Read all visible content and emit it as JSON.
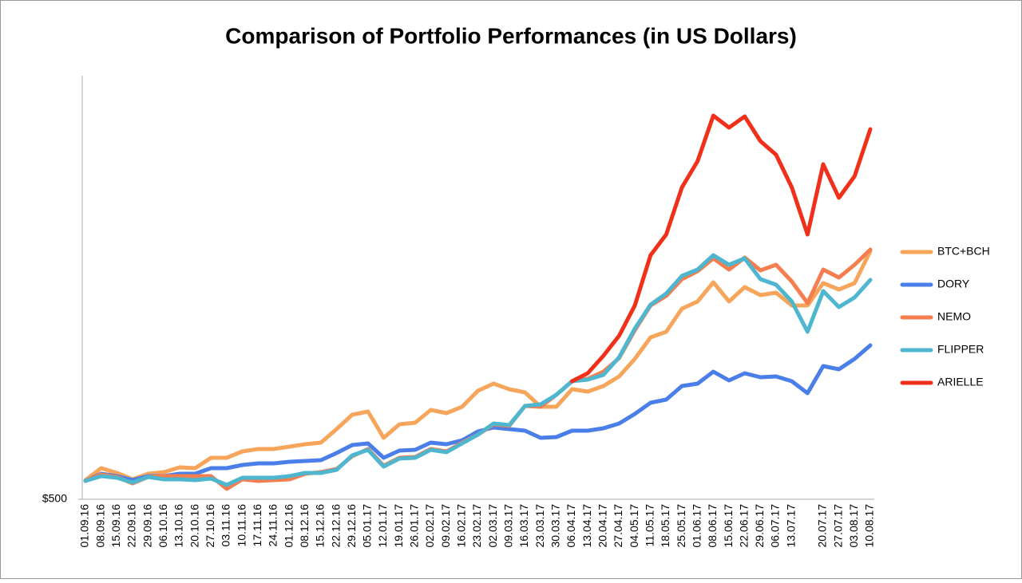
{
  "chart_data": {
    "type": "line",
    "title": "Comparison of Portfolio Performances (in US Dollars)",
    "categories": [
      "01.09.16",
      "08.09.16",
      "15.09.16",
      "22.09.16",
      "29.09.16",
      "06.10.16",
      "13.10.16",
      "20.10.16",
      "27.10.16",
      "03.11.16",
      "10.11.16",
      "17.11.16",
      "24.11.16",
      "01.12.16",
      "08.12.16",
      "15.12.16",
      "22.12.16",
      "29.12.16",
      "05.01.17",
      "12.01.17",
      "19.01.17",
      "26.01.17",
      "02.02.17",
      "09.02.17",
      "16.02.17",
      "23.02.17",
      "02.03.17",
      "09.03.17",
      "16.03.17",
      "23.03.17",
      "30.03.17",
      "06.04.17",
      "13.04.17",
      "20.04.17",
      "27.04.17",
      "04.05.17",
      "11.05.17",
      "18.05.17",
      "25.05.17",
      "01.06.17",
      "08.06.17",
      "15.06.17",
      "22.06.17",
      "29.06.17",
      "06.07.17",
      "13.07.17",
      null,
      "20.07.17",
      "27.07.17",
      "03.08.17",
      "10.08.17"
    ],
    "series": [
      {
        "name": "BTC+BCH",
        "color": "#f6a55a",
        "values": [
          620,
          695,
          665,
          625,
          660,
          670,
          700,
          695,
          760,
          760,
          800,
          815,
          815,
          830,
          845,
          855,
          940,
          1030,
          1050,
          885,
          970,
          980,
          1060,
          1040,
          1080,
          1180,
          1225,
          1190,
          1170,
          1080,
          1080,
          1190,
          1175,
          1210,
          1270,
          1380,
          1515,
          1550,
          1695,
          1740,
          1860,
          1740,
          1830,
          1780,
          1795,
          1715,
          1715,
          1855,
          1815,
          1855,
          2055
        ]
      },
      {
        "name": "DORY",
        "color": "#4a7ee8",
        "values": [
          615,
          660,
          645,
          620,
          645,
          645,
          660,
          660,
          695,
          695,
          715,
          725,
          725,
          735,
          740,
          745,
          790,
          840,
          850,
          760,
          805,
          810,
          855,
          845,
          870,
          925,
          950,
          940,
          930,
          885,
          890,
          930,
          930,
          945,
          975,
          1035,
          1105,
          1125,
          1210,
          1225,
          1300,
          1245,
          1290,
          1265,
          1270,
          1240,
          1165,
          1335,
          1315,
          1380,
          1465
        ]
      },
      {
        "name": "NEMO",
        "color": "#f47e4f",
        "values": [
          615,
          655,
          640,
          600,
          640,
          645,
          645,
          645,
          645,
          565,
          625,
          615,
          620,
          625,
          660,
          670,
          690,
          770,
          815,
          710,
          760,
          765,
          815,
          800,
          855,
          905,
          970,
          960,
          1085,
          1080,
          1155,
          1240,
          1255,
          1300,
          1385,
          1560,
          1715,
          1775,
          1880,
          1930,
          2010,
          1940,
          2015,
          1935,
          1970,
          1865,
          1730,
          1940,
          1890,
          1970,
          2065
        ]
      },
      {
        "name": "FLIPPER",
        "color": "#4fb6cf",
        "values": [
          615,
          645,
          635,
          605,
          640,
          625,
          625,
          620,
          630,
          590,
          635,
          635,
          635,
          645,
          665,
          665,
          685,
          775,
          810,
          705,
          755,
          760,
          810,
          795,
          850,
          905,
          975,
          965,
          1085,
          1095,
          1155,
          1240,
          1250,
          1280,
          1390,
          1570,
          1720,
          1790,
          1900,
          1940,
          2030,
          1970,
          2010,
          1880,
          1845,
          1740,
          1550,
          1805,
          1705,
          1765,
          1875
        ]
      },
      {
        "name": "ARIELLE",
        "color": "#f0301a",
        "values": [
          null,
          null,
          null,
          null,
          null,
          null,
          null,
          null,
          null,
          null,
          null,
          null,
          null,
          null,
          null,
          null,
          null,
          null,
          null,
          null,
          null,
          null,
          null,
          null,
          null,
          null,
          null,
          null,
          null,
          null,
          null,
          1240,
          1290,
          1400,
          1525,
          1715,
          2030,
          2160,
          2455,
          2620,
          2905,
          2830,
          2900,
          2745,
          2660,
          2455,
          2160,
          2600,
          2390,
          2525,
          2820
        ]
      }
    ],
    "ylim": [
      500,
      3150
    ],
    "yticks": [
      {
        "value": 500,
        "label": "$500"
      }
    ],
    "legend": "right"
  }
}
